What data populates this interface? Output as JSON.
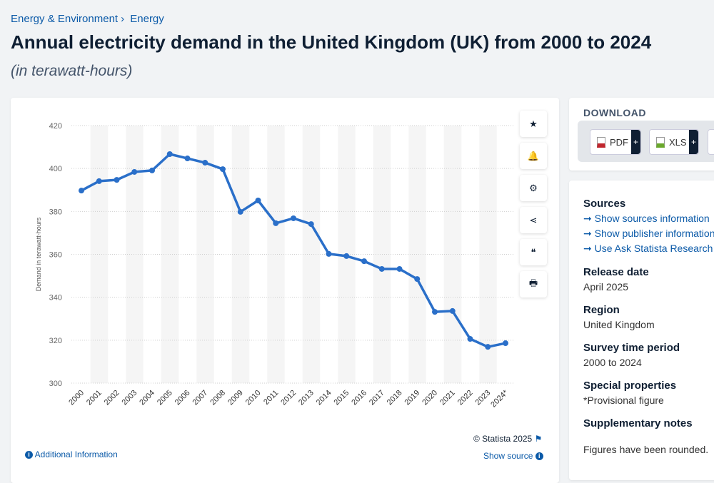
{
  "breadcrumb": [
    "Energy & Environment",
    "Energy"
  ],
  "title": "Annual electricity demand in the United Kingdom (UK) from 2000 to 2024",
  "subtitle": "(in terawatt-hours)",
  "tools": [
    {
      "icon": "star-icon",
      "glyph": "★"
    },
    {
      "icon": "bell-icon",
      "glyph": "🔔"
    },
    {
      "icon": "gear-icon",
      "glyph": "⚙"
    },
    {
      "icon": "share-icon",
      "glyph": "⋖"
    },
    {
      "icon": "quote-icon",
      "glyph": "❝"
    },
    {
      "icon": "print-icon",
      "glyph": "🖶"
    }
  ],
  "footer": {
    "copyright": "© Statista 2025",
    "additional": "Additional Information",
    "show_source": "Show source"
  },
  "download": {
    "title": "DOWNLOAD",
    "buttons": [
      "PDF",
      "XLS"
    ]
  },
  "meta": {
    "sources_label": "Sources",
    "sources_links": [
      "Show sources information",
      "Show publisher information",
      "Use Ask Statista Research Service"
    ],
    "release_label": "Release date",
    "release": "April 2025",
    "region_label": "Region",
    "region": "United Kingdom",
    "period_label": "Survey time period",
    "period": "2000 to 2024",
    "special_label": "Special properties",
    "special": "*Provisional figure",
    "notes_label": "Supplementary notes",
    "notes": "Figures have been rounded."
  },
  "chart_data": {
    "type": "line",
    "title": "",
    "xlabel": "",
    "ylabel": "Demand in terawatt-hours",
    "ylim": [
      300,
      420
    ],
    "yticks": [
      300,
      320,
      340,
      360,
      380,
      400,
      420
    ],
    "grid": true,
    "line_color": "#2a6fc9",
    "categories": [
      "2000",
      "2001",
      "2002",
      "2003",
      "2004",
      "2005",
      "2006",
      "2007",
      "2008",
      "2009",
      "2010",
      "2011",
      "2012",
      "2013",
      "2014",
      "2015",
      "2016",
      "2017",
      "2018",
      "2019",
      "2020",
      "2021",
      "2022",
      "2023",
      "2024*"
    ],
    "values": [
      389.7,
      394.1,
      394.7,
      398.4,
      399.1,
      406.7,
      404.7,
      402.7,
      399.7,
      379.8,
      385.1,
      374.5,
      376.8,
      374.1,
      360.2,
      359.2,
      356.8,
      353.2,
      353.2,
      348.5,
      333.2,
      333.6,
      320.6,
      316.9,
      318.6
    ]
  }
}
